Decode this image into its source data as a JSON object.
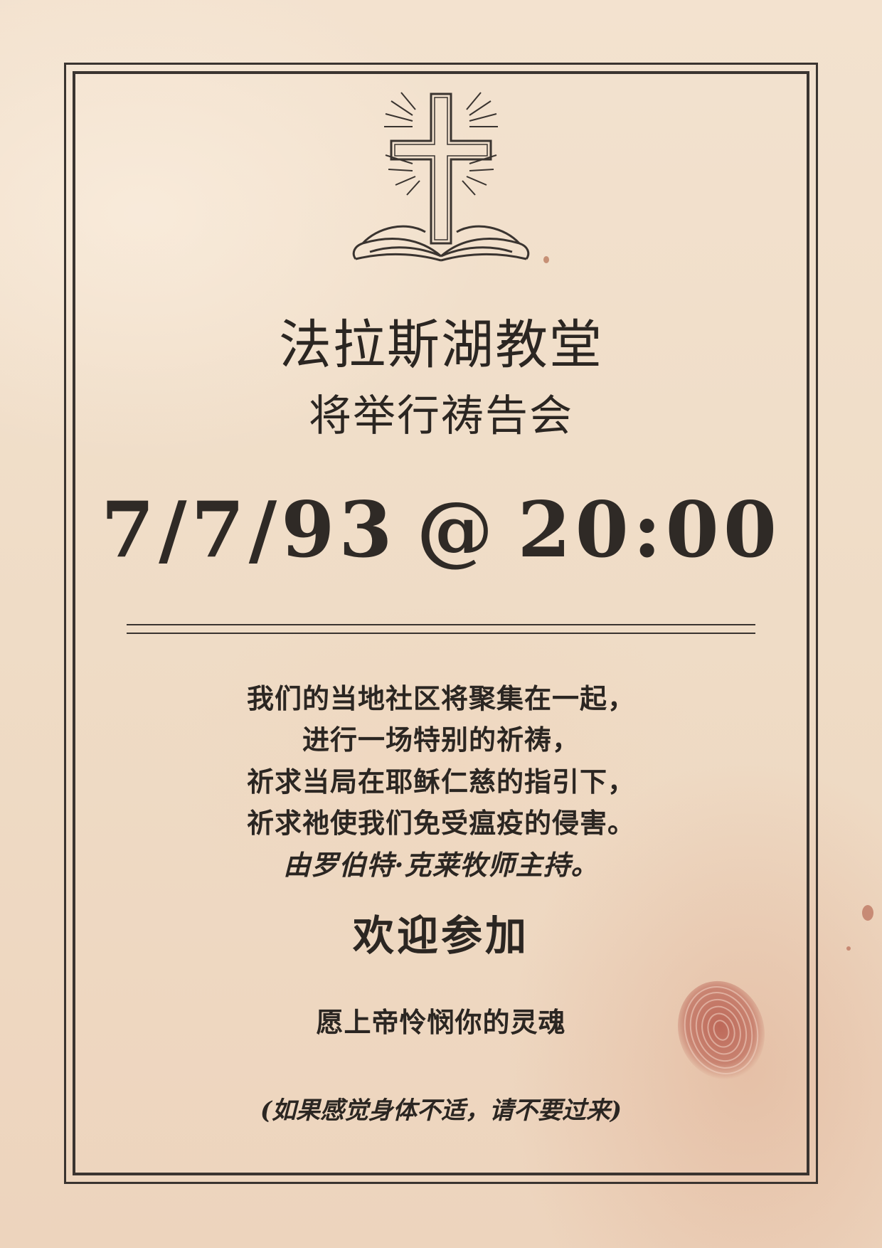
{
  "header": {
    "title": "法拉斯湖教堂",
    "subtitle": "将举行祷告会"
  },
  "event": {
    "date": "7/7/93",
    "at": "@",
    "time": "20:00"
  },
  "body": {
    "lines": [
      "我们的当地社区将聚集在一起，",
      "进行一场特别的祈祷，",
      "祈求当局在耶稣仁慈的指引下，",
      "祈求祂使我们免受瘟疫的侵害。",
      "由罗伯特·克莱牧师主持。"
    ]
  },
  "welcome": "欢迎参加",
  "blessing": "愿上帝怜悯你的灵魂",
  "note": "(如果感觉身体不适，请不要过来)",
  "icons": {
    "emblem": "cross-over-open-book-icon",
    "stain": "fingerprint-stain"
  },
  "colors": {
    "paper": "#efdcc6",
    "ink": "#2b2622",
    "stain": "#b5584a"
  }
}
